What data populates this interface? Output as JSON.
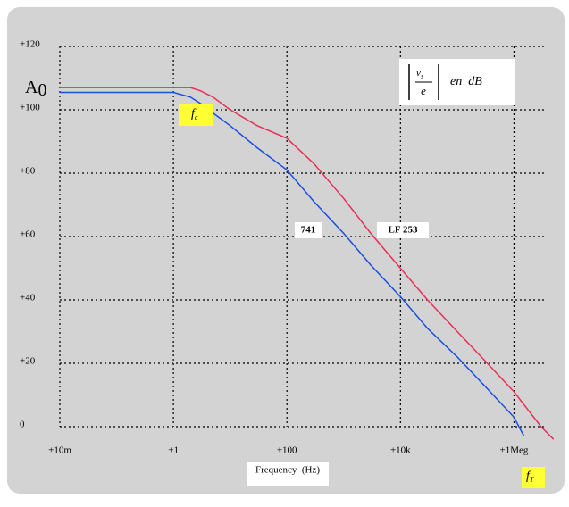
{
  "chart_data": {
    "type": "line",
    "x_label": "Frequency  (Hz)",
    "log_x": true,
    "grid": true,
    "xlim": [
      0.01,
      3500000
    ],
    "ylim": [
      0,
      120
    ],
    "xticks": [
      {
        "value": 0.01,
        "label": "+10m"
      },
      {
        "value": 1,
        "label": "+1"
      },
      {
        "value": 100,
        "label": "+100"
      },
      {
        "value": 10000,
        "label": "+10k"
      },
      {
        "value": 1000000,
        "label": "+1Meg"
      }
    ],
    "yticks": [
      0,
      {
        "value": 20,
        "label": "+20"
      },
      {
        "value": 40,
        "label": "+40"
      },
      {
        "value": 60,
        "label": "+60"
      },
      {
        "value": 80,
        "label": "+80"
      },
      {
        "value": 100,
        "label": "+100"
      },
      {
        "value": 120,
        "label": "+120"
      }
    ],
    "series": [
      {
        "name": "LF 253",
        "color": "#e8305a",
        "x": [
          0.01,
          1,
          2,
          3,
          5,
          10,
          30,
          100,
          300,
          1000,
          3000,
          10000,
          30000,
          100000,
          300000,
          1000000,
          3000000,
          5000000
        ],
        "values": [
          107,
          107,
          107,
          106,
          104,
          100,
          95,
          91,
          83,
          72,
          61,
          50,
          40,
          30,
          21,
          11,
          0,
          -4
        ]
      },
      {
        "name": "741",
        "color": "#1a4fe0",
        "x": [
          0.01,
          1,
          2,
          3,
          5,
          10,
          30,
          100,
          300,
          1000,
          3000,
          10000,
          30000,
          100000,
          300000,
          1000000,
          1500000
        ],
        "values": [
          105.5,
          105.5,
          104,
          102,
          99,
          95,
          88,
          81,
          71,
          61,
          51,
          41,
          31,
          22,
          13,
          3,
          -3
        ]
      }
    ],
    "annotations": {
      "a0": {
        "text": "A",
        "sub": "0"
      },
      "fc": {
        "text": "f",
        "sub": "c"
      },
      "ft": {
        "text": "f",
        "sub": "T"
      },
      "formula": {
        "num": "v",
        "num_sub": "s",
        "den": "e",
        "unit": "en  dB"
      }
    }
  }
}
